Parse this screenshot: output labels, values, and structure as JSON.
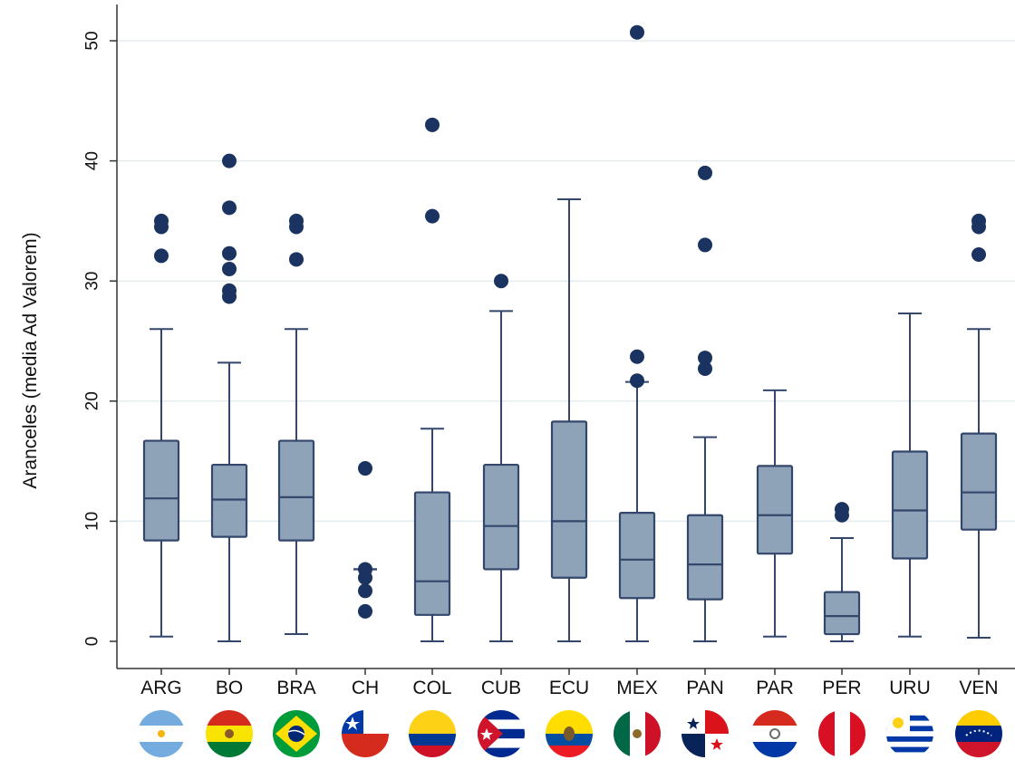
{
  "chart_data": {
    "type": "boxplot",
    "ylabel": "Aranceles (media Ad Valorem)",
    "xlabel": "",
    "title": "",
    "ylim": [
      0,
      52
    ],
    "yticks": [
      0,
      10,
      20,
      30,
      40,
      50
    ],
    "grid": "horizontal",
    "categories": [
      "ARG",
      "BO",
      "BRA",
      "CH",
      "COL",
      "CUB",
      "ECU",
      "MEX",
      "PAN",
      "PAR",
      "PER",
      "URU",
      "VEN"
    ],
    "boxes": [
      {
        "category": "ARG",
        "whisker_low": 0.4,
        "q1": 8.4,
        "median": 11.9,
        "q3": 16.7,
        "whisker_high": 26,
        "outliers": [
          32.1,
          34.5,
          35
        ]
      },
      {
        "category": "BO",
        "whisker_low": 0,
        "q1": 8.7,
        "median": 11.8,
        "q3": 14.7,
        "whisker_high": 23.2,
        "outliers": [
          28.7,
          29.2,
          31,
          32.3,
          36.1,
          40
        ]
      },
      {
        "category": "BRA",
        "whisker_low": 0.6,
        "q1": 8.4,
        "median": 12,
        "q3": 16.7,
        "whisker_high": 26,
        "outliers": [
          31.8,
          34.5,
          35
        ]
      },
      {
        "category": "CH",
        "whisker_low": 6,
        "q1": 6,
        "median": 6,
        "q3": 6,
        "whisker_high": 6,
        "outliers": [
          2.5,
          4.2,
          5.3,
          6,
          14.4
        ]
      },
      {
        "category": "COL",
        "whisker_low": 0,
        "q1": 2.2,
        "median": 5,
        "q3": 12.4,
        "whisker_high": 17.7,
        "outliers": [
          35.4,
          43
        ]
      },
      {
        "category": "CUB",
        "whisker_low": 0,
        "q1": 6,
        "median": 9.6,
        "q3": 14.7,
        "whisker_high": 27.5,
        "outliers": [
          30
        ]
      },
      {
        "category": "ECU",
        "whisker_low": 0,
        "q1": 5.3,
        "median": 10,
        "q3": 18.3,
        "whisker_high": 36.8,
        "outliers": []
      },
      {
        "category": "MEX",
        "whisker_low": 0,
        "q1": 3.6,
        "median": 6.8,
        "q3": 10.7,
        "whisker_high": 21.6,
        "outliers": [
          21.7,
          23.7,
          50.7
        ]
      },
      {
        "category": "PAN",
        "whisker_low": 0,
        "q1": 3.5,
        "median": 6.4,
        "q3": 10.5,
        "whisker_high": 17,
        "outliers": [
          22.7,
          23.6,
          33,
          39
        ]
      },
      {
        "category": "PAR",
        "whisker_low": 0.4,
        "q1": 7.3,
        "median": 10.5,
        "q3": 14.6,
        "whisker_high": 20.9,
        "outliers": []
      },
      {
        "category": "PER",
        "whisker_low": 0,
        "q1": 0.6,
        "median": 2.1,
        "q3": 4.1,
        "whisker_high": 8.6,
        "outliers": [
          10.5,
          11
        ]
      },
      {
        "category": "URU",
        "whisker_low": 0.4,
        "q1": 6.9,
        "median": 10.9,
        "q3": 15.8,
        "whisker_high": 27.3,
        "outliers": []
      },
      {
        "category": "VEN",
        "whisker_low": 0.3,
        "q1": 9.3,
        "median": 12.4,
        "q3": 17.3,
        "whisker_high": 26,
        "outliers": [
          32.2,
          34.5,
          35
        ]
      }
    ]
  },
  "style": {
    "box_fill": "#8fa3b8",
    "box_stroke": "#33466b",
    "outlier_color": "#1a3360",
    "grid_color": "#e3ecef",
    "axis_color": "#333333"
  },
  "flags": [
    {
      "category": "ARG",
      "icon": "argentina-flag-icon"
    },
    {
      "category": "BO",
      "icon": "bolivia-flag-icon"
    },
    {
      "category": "BRA",
      "icon": "brazil-flag-icon"
    },
    {
      "category": "CH",
      "icon": "chile-flag-icon"
    },
    {
      "category": "COL",
      "icon": "colombia-flag-icon"
    },
    {
      "category": "CUB",
      "icon": "cuba-flag-icon"
    },
    {
      "category": "ECU",
      "icon": "ecuador-flag-icon"
    },
    {
      "category": "MEX",
      "icon": "mexico-flag-icon"
    },
    {
      "category": "PAN",
      "icon": "panama-flag-icon"
    },
    {
      "category": "PAR",
      "icon": "paraguay-flag-icon"
    },
    {
      "category": "PER",
      "icon": "peru-flag-icon"
    },
    {
      "category": "URU",
      "icon": "uruguay-flag-icon"
    },
    {
      "category": "VEN",
      "icon": "venezuela-flag-icon"
    }
  ]
}
